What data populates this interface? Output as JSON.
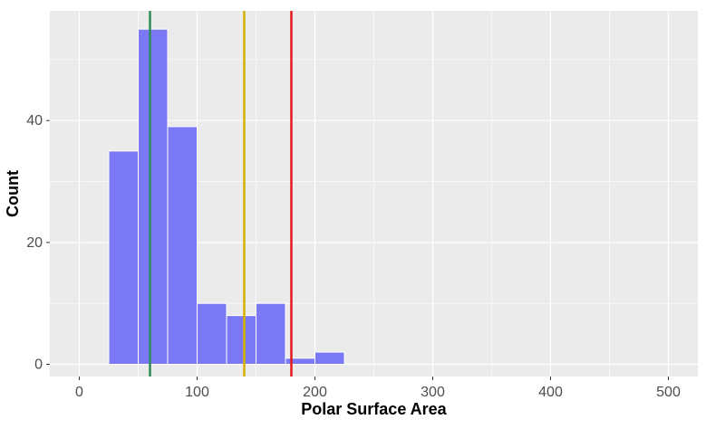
{
  "chart_data": {
    "type": "bar",
    "subtype": "histogram",
    "xlabel": "Polar Surface Area",
    "ylabel": "Count",
    "xlim": [
      -25,
      525
    ],
    "ylim": [
      -2,
      58
    ],
    "x_ticks": [
      0,
      100,
      200,
      300,
      400,
      500
    ],
    "x_tick_labels": [
      "0",
      "100",
      "200",
      "300",
      "400",
      "500"
    ],
    "y_ticks": [
      0,
      20,
      40
    ],
    "y_tick_labels": [
      "0",
      "20",
      "40"
    ],
    "grid": true,
    "bin_width": 25,
    "bins": [
      {
        "x0": 25,
        "x1": 50,
        "count": 35
      },
      {
        "x0": 50,
        "x1": 75,
        "count": 55
      },
      {
        "x0": 75,
        "x1": 100,
        "count": 39
      },
      {
        "x0": 100,
        "x1": 125,
        "count": 10
      },
      {
        "x0": 125,
        "x1": 150,
        "count": 8
      },
      {
        "x0": 150,
        "x1": 175,
        "count": 10
      },
      {
        "x0": 175,
        "x1": 200,
        "count": 1
      },
      {
        "x0": 200,
        "x1": 225,
        "count": 2
      }
    ],
    "reference_lines": [
      {
        "x": 60,
        "color": "#2e8b57"
      },
      {
        "x": 140,
        "color": "#d4b200"
      },
      {
        "x": 180,
        "color": "#e41a1c"
      }
    ],
    "colors": {
      "bar_fill": "#7b78f5",
      "panel_background": "#ebebeb",
      "grid": "#ffffff"
    }
  }
}
